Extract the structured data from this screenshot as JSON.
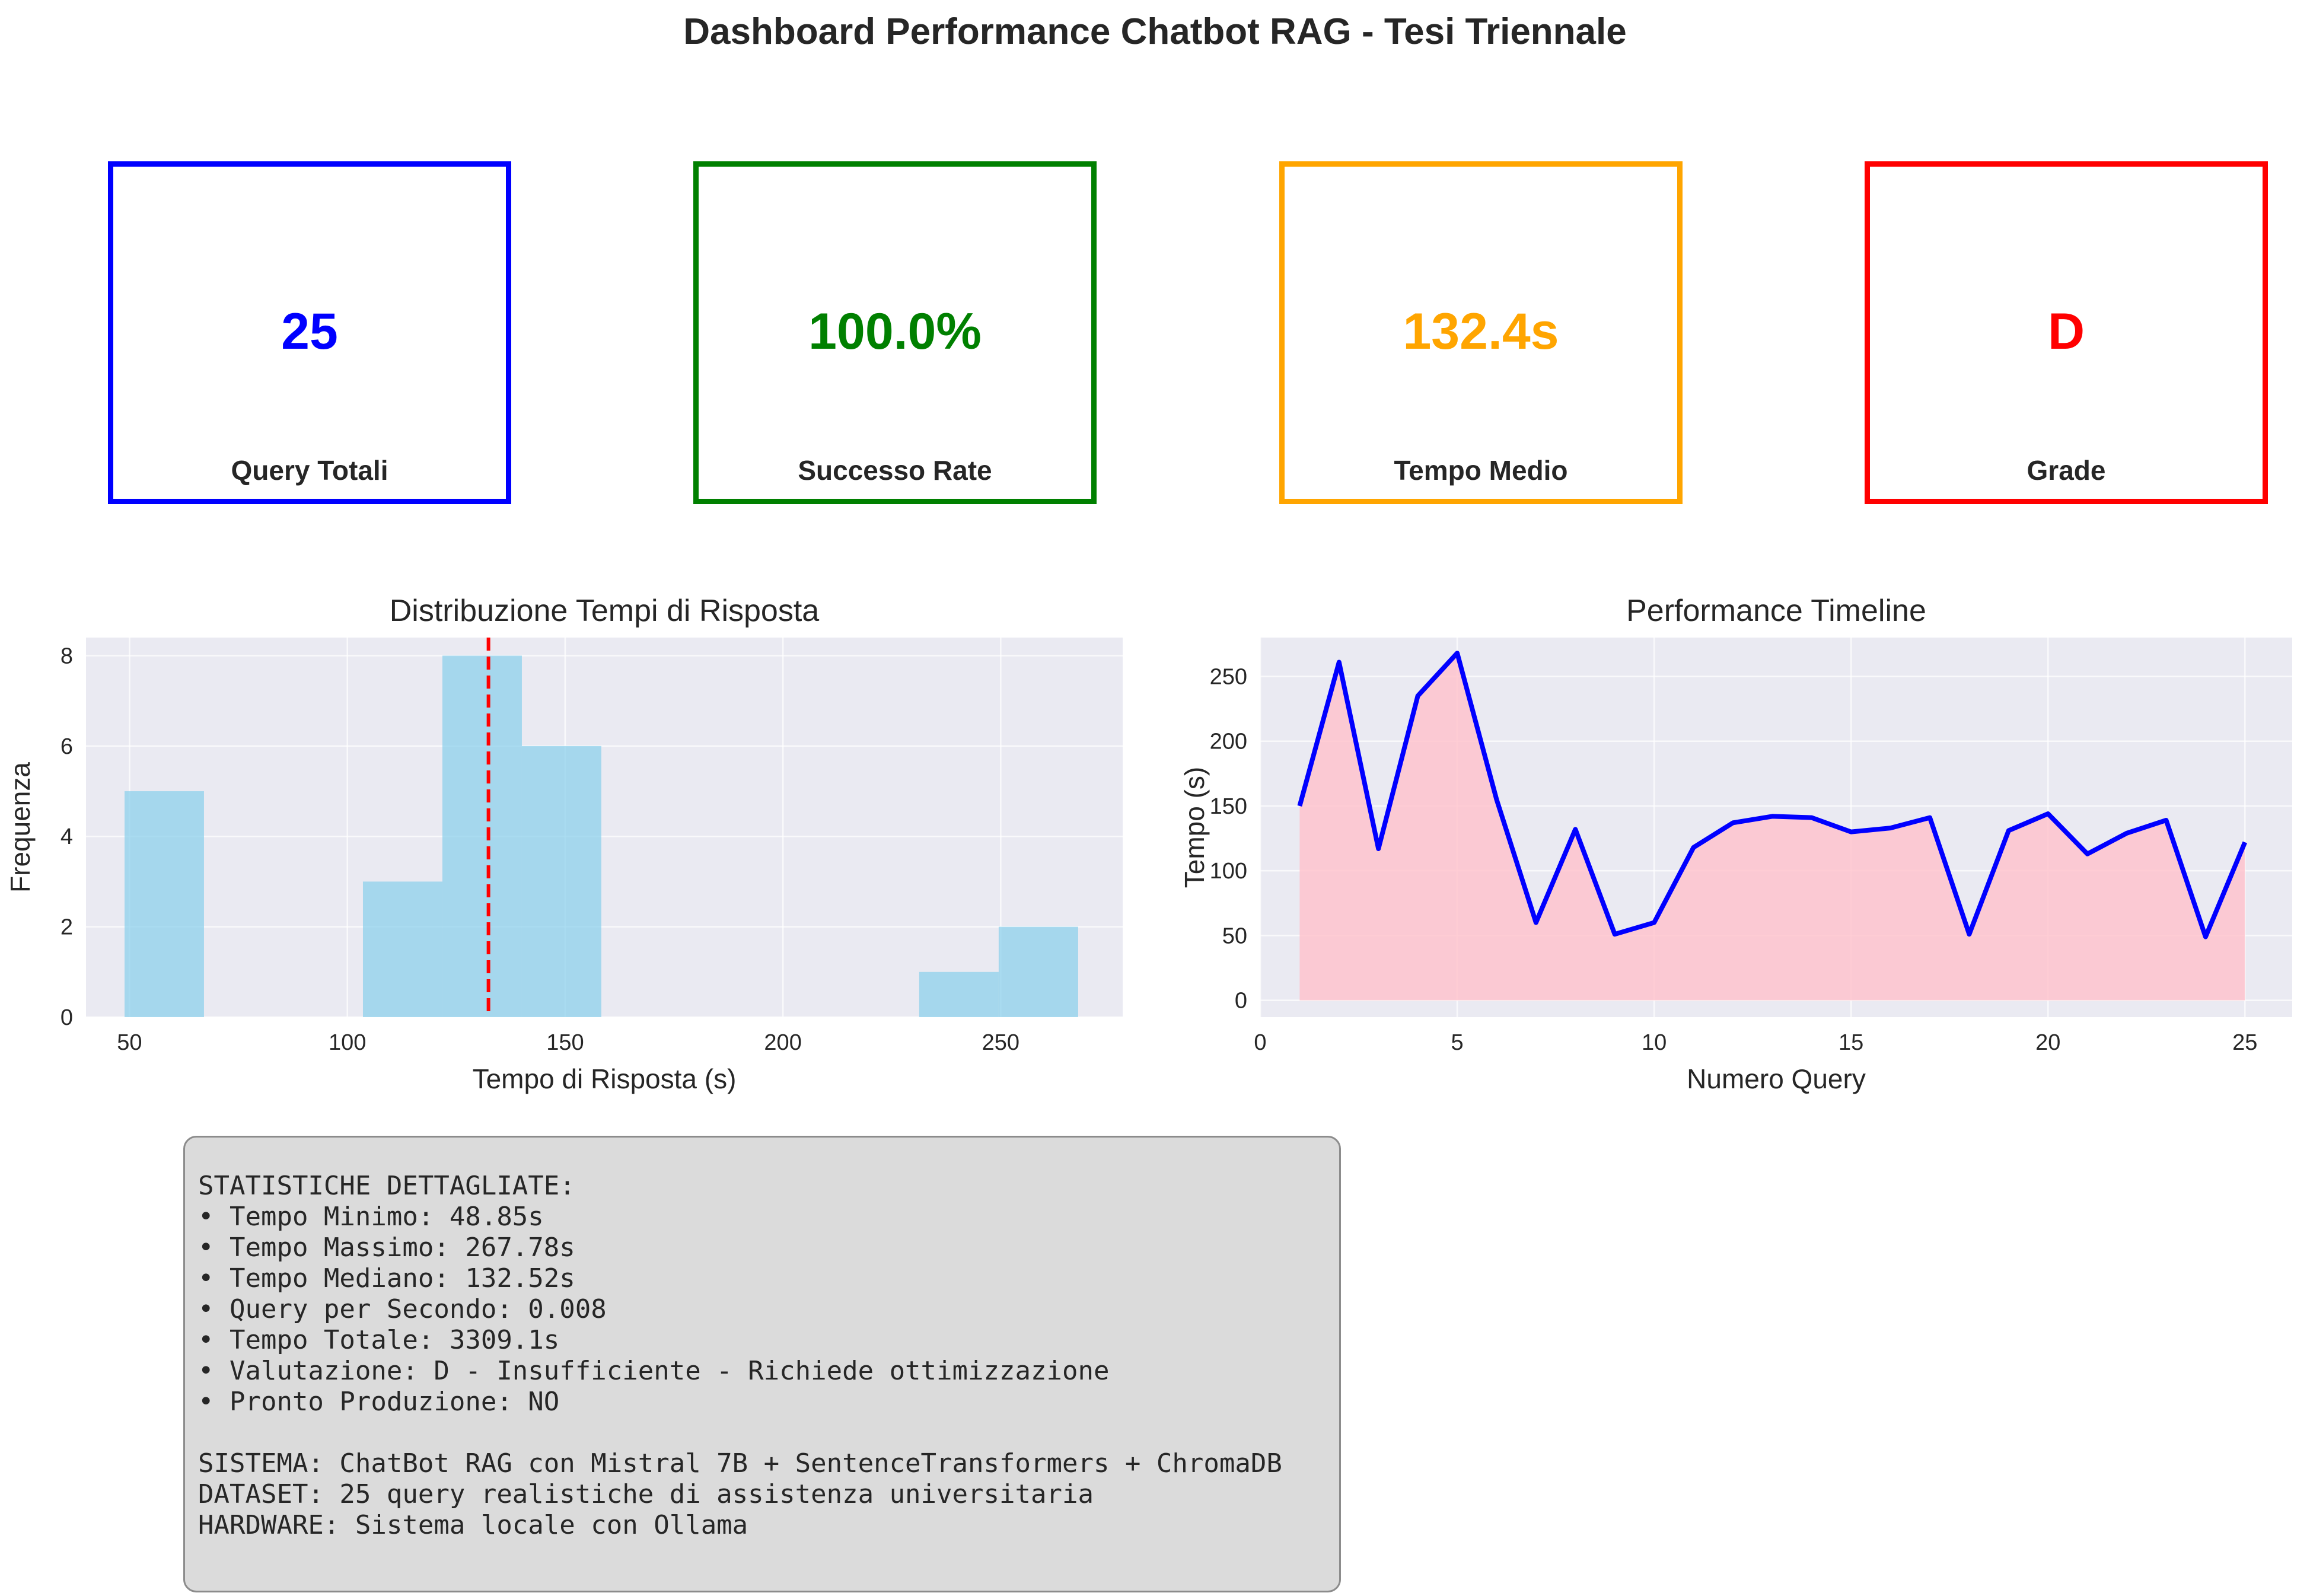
{
  "title": "Dashboard Performance Chatbot RAG - Tesi Triennale",
  "kpis": [
    {
      "value": "25",
      "label": "Query Totali",
      "color": "#0000ff"
    },
    {
      "value": "100.0%",
      "label": "Successo Rate",
      "color": "#008000"
    },
    {
      "value": "132.4s",
      "label": "Tempo Medio",
      "color": "#ffa500"
    },
    {
      "value": "D",
      "label": "Grade",
      "color": "#ff0000"
    }
  ],
  "chart_data": [
    {
      "type": "bar",
      "title": "Distribuzione Tempi di Risposta",
      "xlabel": "Tempo di Risposta (s)",
      "ylabel": "Frequenza",
      "xlim": [
        40,
        278
      ],
      "ylim": [
        0,
        8.4
      ],
      "xticks": [
        50,
        100,
        150,
        200,
        250
      ],
      "yticks": [
        0,
        2,
        4,
        6,
        8
      ],
      "bin_edges": [
        48.85,
        67.09,
        85.34,
        103.58,
        121.82,
        140.07,
        158.31,
        176.55,
        194.8,
        213.04,
        231.28,
        249.53,
        267.78
      ],
      "values": [
        5,
        0,
        0,
        3,
        8,
        6,
        0,
        0,
        0,
        0,
        1,
        2
      ],
      "mean_line": 132.4,
      "bar_color": "#87ceeb",
      "mean_color": "#ff0000",
      "grid": true
    },
    {
      "type": "area",
      "title": "Performance Timeline",
      "xlabel": "Numero Query",
      "ylabel": "Tempo (s)",
      "xlim": [
        0,
        26.2
      ],
      "ylim": [
        -13,
        280
      ],
      "xticks": [
        0,
        5,
        10,
        15,
        20,
        25
      ],
      "yticks": [
        0,
        50,
        100,
        150,
        200,
        250
      ],
      "x": [
        1,
        2,
        3,
        4,
        5,
        6,
        7,
        8,
        9,
        10,
        11,
        12,
        13,
        14,
        15,
        16,
        17,
        18,
        19,
        20,
        21,
        22,
        23,
        24,
        25
      ],
      "y": [
        150,
        261,
        117,
        235,
        268,
        155,
        60,
        132,
        51,
        60,
        118,
        137,
        142,
        141,
        130,
        133,
        141,
        51,
        131,
        144,
        113,
        129,
        139,
        49,
        122
      ],
      "line_color": "#0000ff",
      "fill_color": "#ffc0cb",
      "grid": true
    }
  ],
  "stats": {
    "lines": [
      "STATISTICHE DETTAGLIATE:",
      "• Tempo Minimo: 48.85s",
      "• Tempo Massimo: 267.78s",
      "• Tempo Mediano: 132.52s",
      "• Query per Secondo: 0.008",
      "• Tempo Totale: 3309.1s",
      "• Valutazione: D - Insufficiente - Richiede ottimizzazione",
      "• Pronto Produzione: NO",
      "",
      "SISTEMA: ChatBot RAG con Mistral 7B + SentenceTransformers + ChromaDB",
      "DATASET: 25 query realistiche di assistenza universitaria",
      "HARDWARE: Sistema locale con Ollama"
    ]
  }
}
